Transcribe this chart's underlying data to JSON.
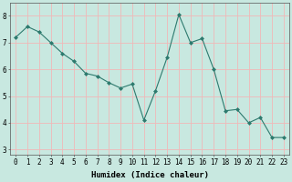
{
  "x": [
    0,
    1,
    2,
    3,
    4,
    5,
    6,
    7,
    8,
    9,
    10,
    11,
    12,
    13,
    14,
    15,
    16,
    17,
    18,
    19,
    20,
    21,
    22,
    23
  ],
  "y": [
    7.2,
    7.6,
    7.4,
    7.0,
    6.6,
    6.3,
    5.85,
    5.75,
    5.5,
    5.3,
    5.45,
    4.1,
    5.2,
    6.45,
    8.05,
    7.0,
    7.15,
    6.0,
    4.45,
    4.5,
    4.0,
    4.2,
    3.45,
    3.45
  ],
  "line_color": "#2d7a6e",
  "marker": "D",
  "marker_size": 2.0,
  "bg_color": "#c8e8e0",
  "grid_color": "#f0b8b8",
  "xlabel": "Humidex (Indice chaleur)",
  "xlabel_fontsize": 6.5,
  "tick_fontsize": 5.5,
  "ylim": [
    2.8,
    8.5
  ],
  "xlim": [
    -0.5,
    23.5
  ],
  "yticks": [
    3,
    4,
    5,
    6,
    7,
    8
  ],
  "xticks": [
    0,
    1,
    2,
    3,
    4,
    5,
    6,
    7,
    8,
    9,
    10,
    11,
    12,
    13,
    14,
    15,
    16,
    17,
    18,
    19,
    20,
    21,
    22,
    23
  ]
}
